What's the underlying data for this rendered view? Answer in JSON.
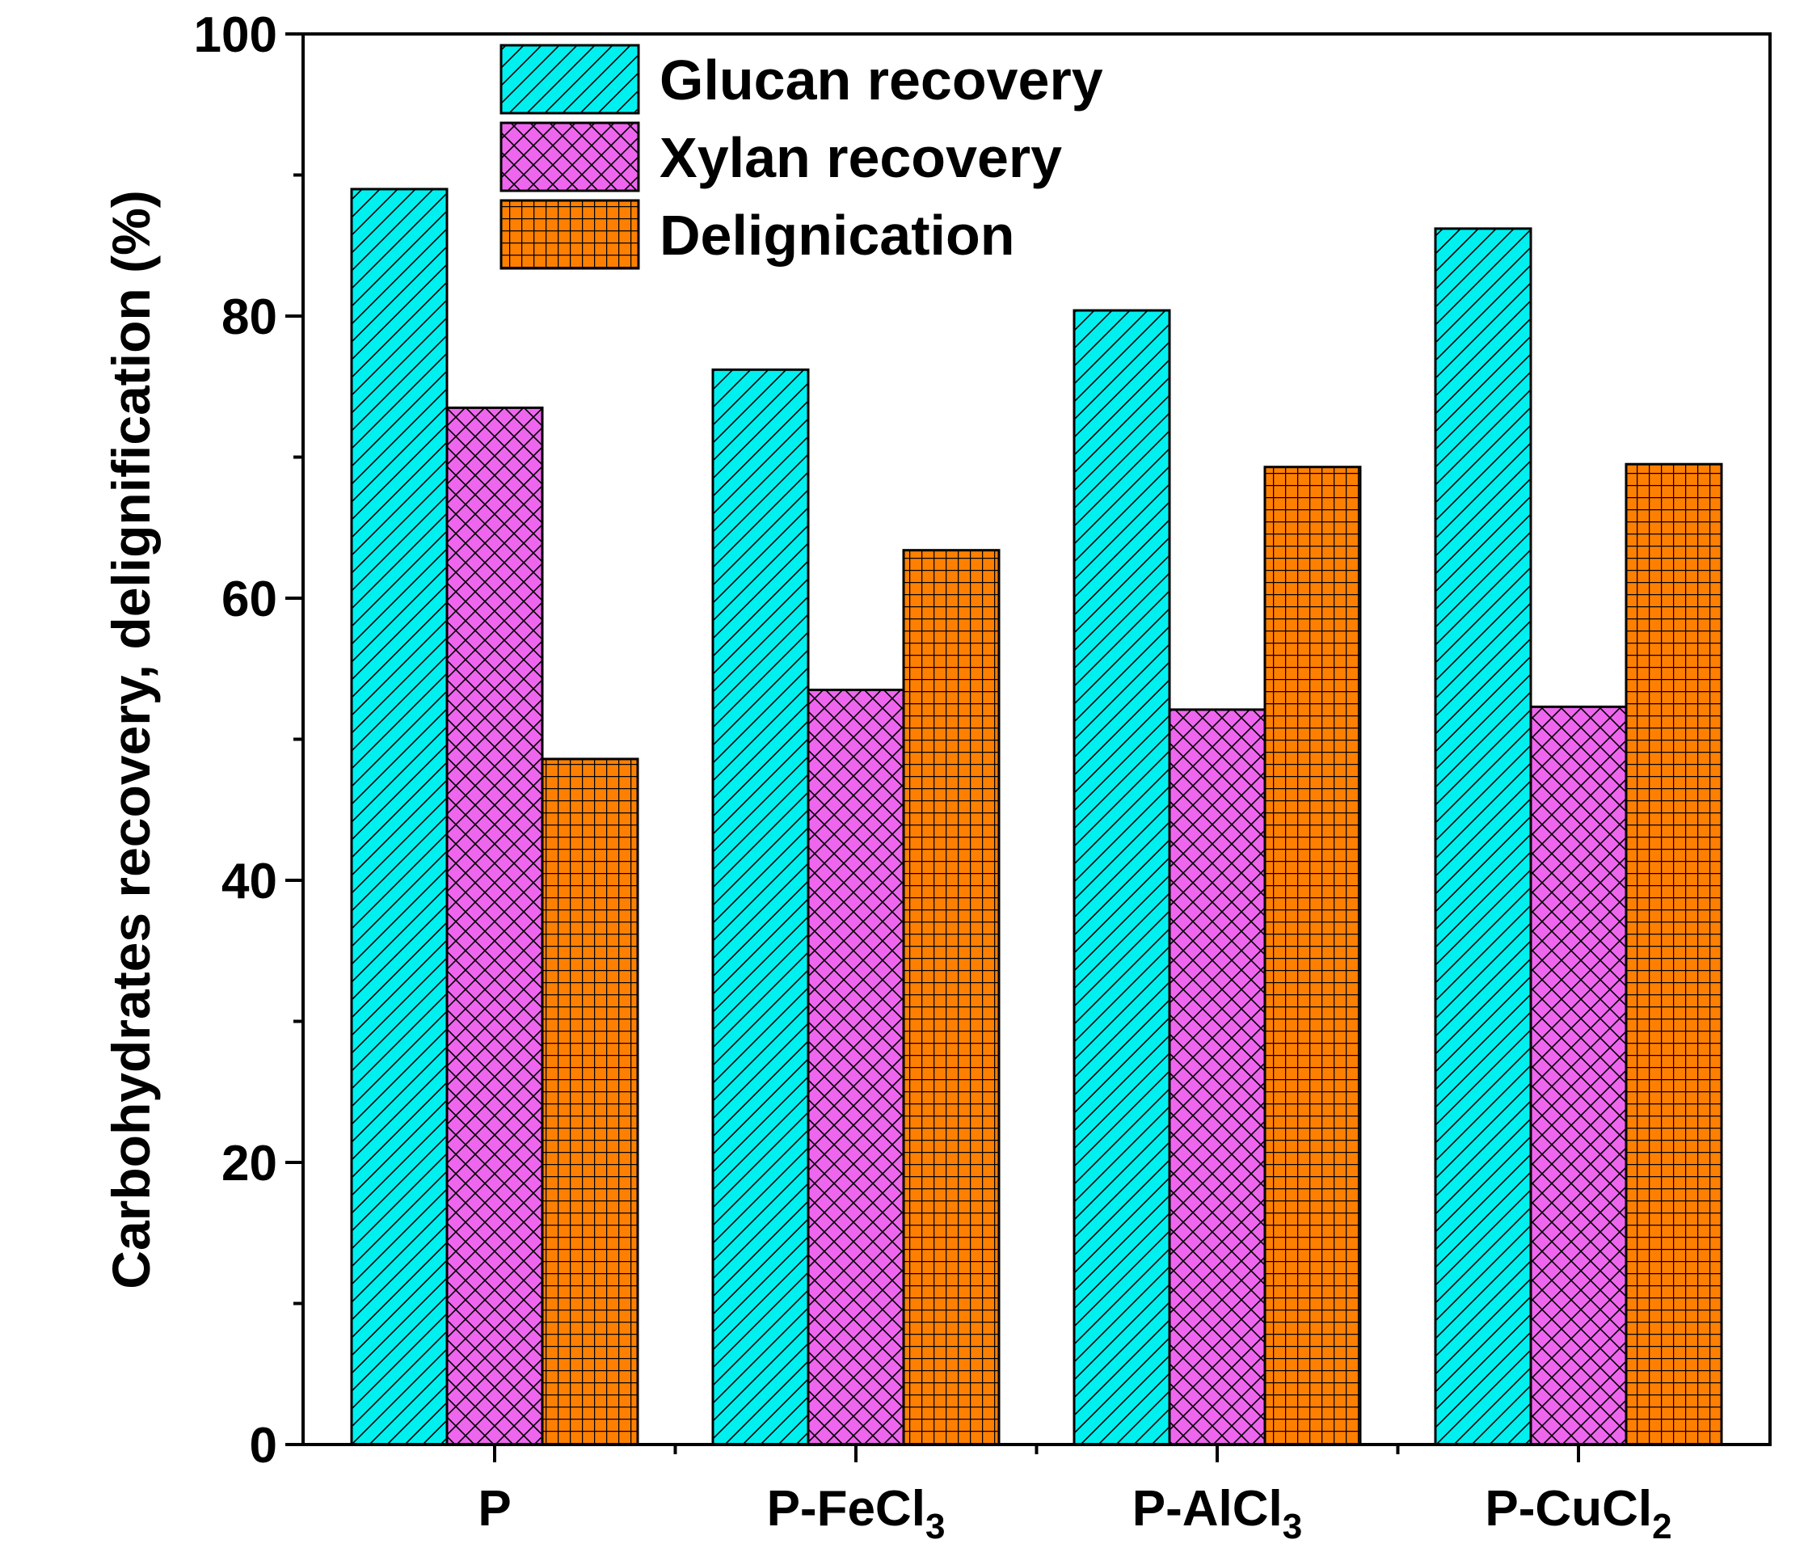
{
  "chart_data": {
    "type": "bar",
    "title": "",
    "xlabel": "",
    "ylabel": "Carbohydrates recovery, delignification (%)",
    "ylim": [
      0,
      100
    ],
    "yticks": [
      "0",
      "20",
      "40",
      "60",
      "80",
      "100"
    ],
    "categories": [
      {
        "base": "P",
        "sub": ""
      },
      {
        "base": "P-FeCl",
        "sub": "3"
      },
      {
        "base": "P-AlCl",
        "sub": "3"
      },
      {
        "base": "P-CuCl",
        "sub": "2"
      }
    ],
    "series": [
      {
        "name": "Glucan recovery",
        "color": "#00f0f0",
        "pattern": "diagonal",
        "values": [
          89.0,
          76.2,
          80.4,
          86.2
        ]
      },
      {
        "name": "Xylan recovery",
        "color": "#ee66ee",
        "pattern": "crosshatch",
        "values": [
          73.5,
          53.5,
          52.1,
          52.3
        ]
      },
      {
        "name": "Delignication",
        "color": "#ff8000",
        "pattern": "grid",
        "values": [
          48.6,
          63.4,
          69.3,
          69.5
        ]
      }
    ],
    "legend_position": "top-left",
    "grid": false
  }
}
